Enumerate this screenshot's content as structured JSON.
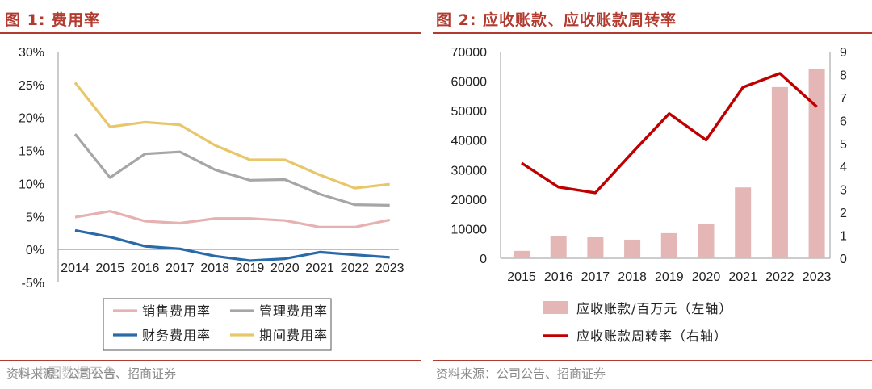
{
  "left": {
    "title": "图 1:  费用率",
    "source": "资料来源：公司公告、招商证券",
    "watermark": "© 中国数据平台"
  },
  "right": {
    "title": "图 2:  应收账款、应收账款周转率",
    "source": "资料来源：公司公告、招商证券"
  },
  "colors": {
    "accent": "#b33a2f",
    "sales": "#e6b1b1",
    "mgmt": "#a6a6a6",
    "fin": "#2a6aa8",
    "period": "#e8c66a",
    "bar": "#e4b6b6",
    "turnover": "#c00000"
  },
  "chart_data": [
    {
      "type": "line",
      "title": "费用率",
      "categories": [
        "2014",
        "2015",
        "2016",
        "2017",
        "2018",
        "2019",
        "2020",
        "2021",
        "2022",
        "2023"
      ],
      "ylim": [
        -5,
        30
      ],
      "yticks": [
        "-5%",
        "0%",
        "5%",
        "10%",
        "15%",
        "20%",
        "25%",
        "30%"
      ],
      "series": [
        {
          "name": "销售费用率",
          "color": "#e6b1b1",
          "values": [
            4.9,
            5.8,
            4.3,
            4.0,
            4.7,
            4.7,
            4.4,
            3.4,
            3.4,
            4.5
          ]
        },
        {
          "name": "管理费用率",
          "color": "#a6a6a6",
          "values": [
            17.5,
            10.9,
            14.5,
            14.8,
            12.1,
            10.5,
            10.6,
            8.4,
            6.8,
            6.7
          ]
        },
        {
          "name": "财务费用率",
          "color": "#2a6aa8",
          "values": [
            2.9,
            1.9,
            0.5,
            0.1,
            -1.0,
            -1.7,
            -1.4,
            -0.4,
            -0.8,
            -1.2
          ]
        },
        {
          "name": "期间费用率",
          "color": "#e8c66a",
          "values": [
            25.3,
            18.6,
            19.3,
            18.9,
            15.8,
            13.6,
            13.6,
            11.3,
            9.3,
            9.9
          ]
        }
      ]
    },
    {
      "type": "bar+line",
      "title": "应收账款、应收账款周转率",
      "categories": [
        "2015",
        "2016",
        "2017",
        "2018",
        "2019",
        "2020",
        "2021",
        "2022",
        "2023"
      ],
      "ylim_left": [
        0,
        70000
      ],
      "yticks_left": [
        "0",
        "10000",
        "20000",
        "30000",
        "40000",
        "50000",
        "60000",
        "70000"
      ],
      "ylim_right": [
        0,
        9
      ],
      "yticks_right": [
        "0",
        "1",
        "2",
        "3",
        "4",
        "5",
        "6",
        "7",
        "8",
        "9"
      ],
      "series": [
        {
          "name": "应收账款/百万元（左轴）",
          "type": "bar",
          "axis": "left",
          "color": "#e4b6b6",
          "values": [
            2500,
            7500,
            7100,
            6300,
            8500,
            11500,
            24000,
            58000,
            64000
          ]
        },
        {
          "name": "应收账款周转率（右轴）",
          "type": "line",
          "axis": "right",
          "color": "#c00000",
          "values": [
            4.15,
            3.1,
            2.85,
            4.6,
            6.3,
            5.15,
            7.45,
            8.05,
            6.6
          ]
        }
      ]
    }
  ]
}
